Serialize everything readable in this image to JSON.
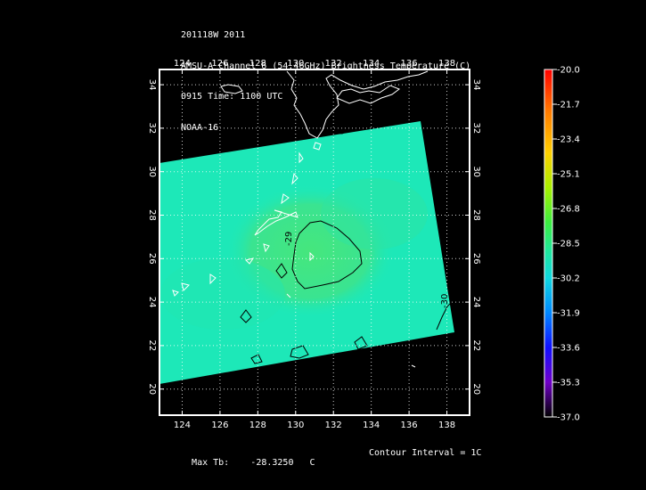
{
  "header": {
    "line1": "201118W 2011",
    "line2": "AMSU-A Channel 6 (54.46GHz) Brightness Temperature (C)",
    "line3": "0915 Time: 1100 UTC",
    "line4": "NOAA-16"
  },
  "map": {
    "lon_ticks": [
      "124",
      "126",
      "128",
      "130",
      "132",
      "134",
      "136",
      "138"
    ],
    "lat_ticks": [
      "20",
      "22",
      "24",
      "26",
      "28",
      "30",
      "32",
      "34"
    ],
    "contour_labels": [
      "-29",
      "-30"
    ],
    "lon_range": [
      122.8,
      139.2
    ],
    "lat_range": [
      18.8,
      34.7
    ],
    "swath_color": "#1de8b8",
    "warm_color": "#44e66a",
    "contour_color": "#000000",
    "coast_color": "#ffffff",
    "grid": "dotted white"
  },
  "colorbar": {
    "labels": [
      "-20.0",
      "-21.7",
      "-23.4",
      "-25.1",
      "-26.8",
      "-28.5",
      "-30.2",
      "-31.9",
      "-33.6",
      "-35.3",
      "-37.0"
    ],
    "min": -37.0,
    "max": -20.0
  },
  "footer": {
    "max_tb_label": "Max Tb:",
    "max_tb_value": "-28.3250",
    "max_tb_unit": "C",
    "contour_interval": "Contour Interval = 1C"
  }
}
